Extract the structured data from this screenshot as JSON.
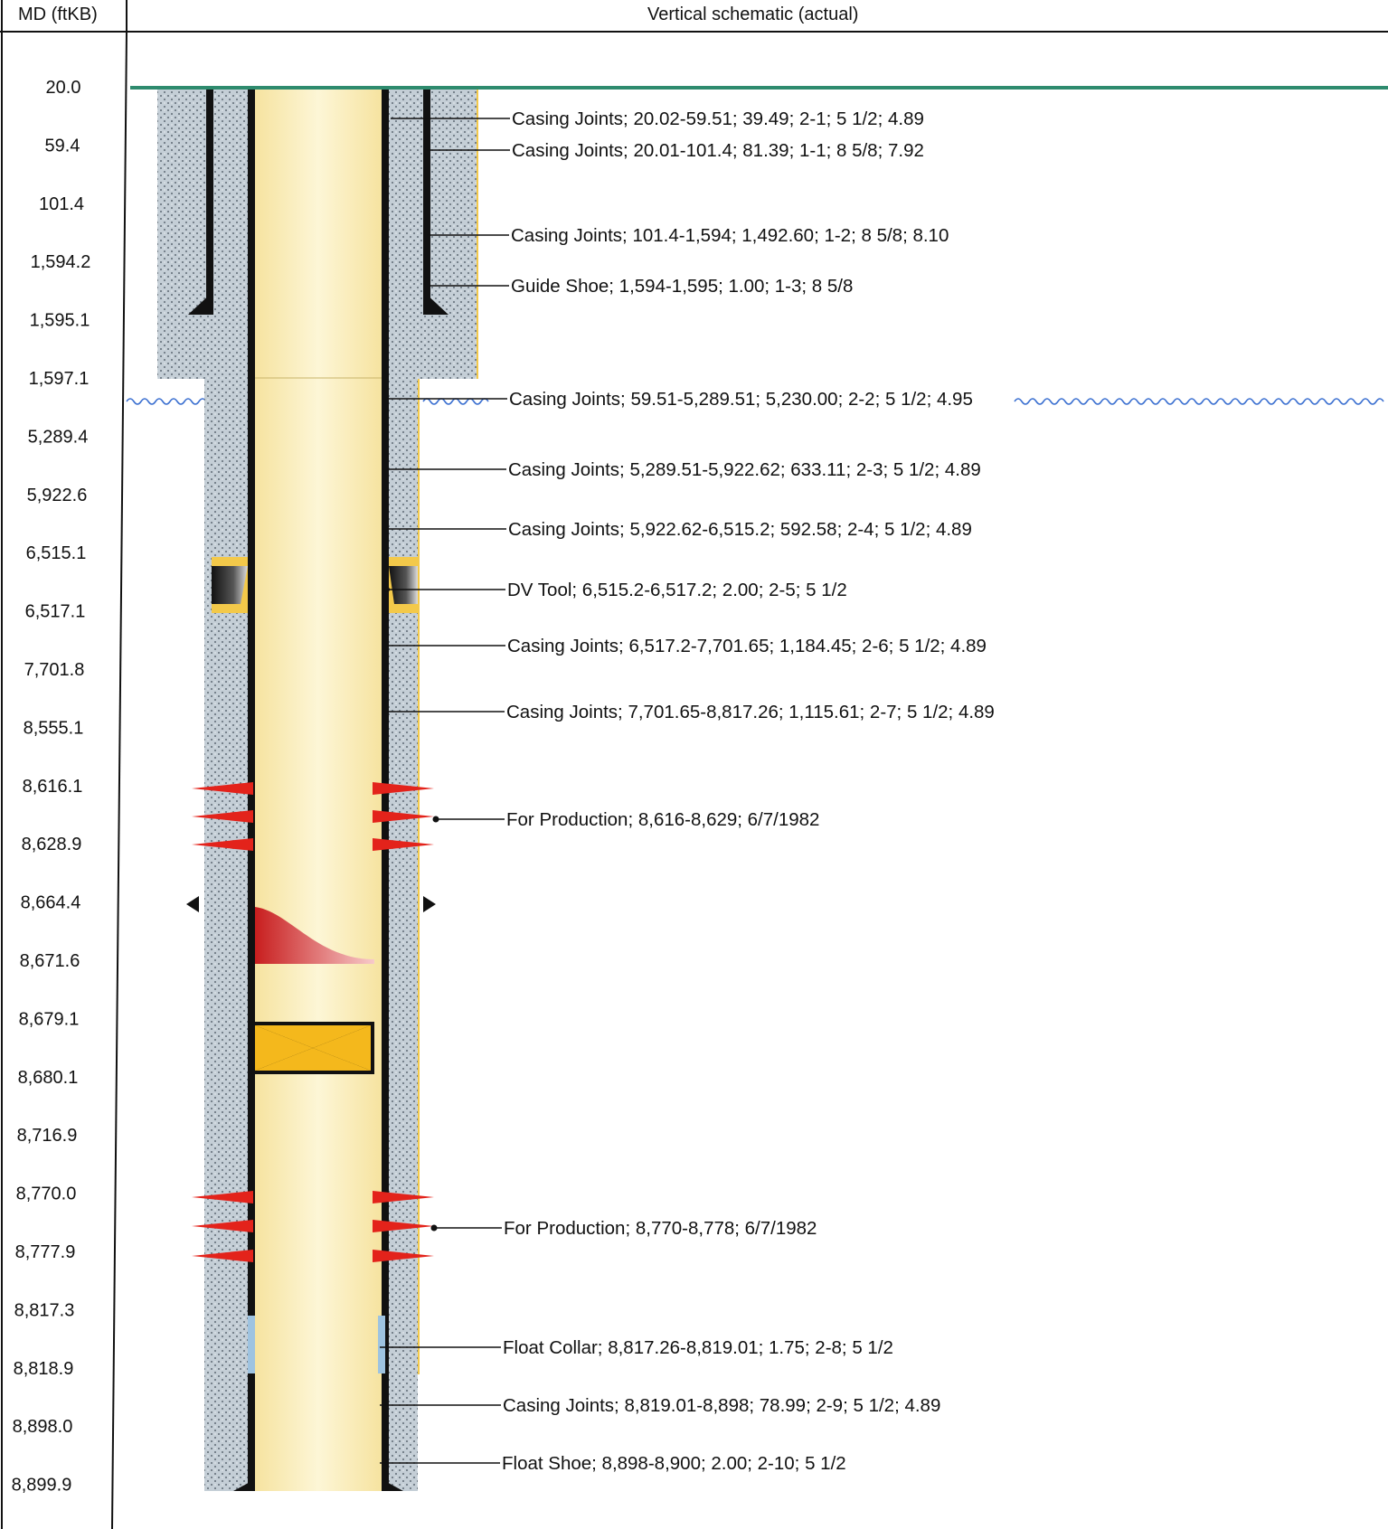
{
  "header": {
    "md_column": "MD (ftKB)",
    "schematic_column": "Vertical schematic (actual)"
  },
  "depths": [
    "20.0",
    "59.4",
    "101.4",
    "1,594.2",
    "1,595.1",
    "1,597.1",
    "5,289.4",
    "5,922.6",
    "6,515.1",
    "6,517.1",
    "7,701.8",
    "8,555.1",
    "8,616.1",
    "8,628.9",
    "8,664.4",
    "8,671.6",
    "8,679.1",
    "8,680.1",
    "8,716.9",
    "8,770.0",
    "8,777.9",
    "8,817.3",
    "8,818.9",
    "8,898.0",
    "8,899.9"
  ],
  "components": [
    {
      "label": "Casing Joints; 20.02-59.51; 39.49; 2-1; 5 1/2; 4.89"
    },
    {
      "label": "Casing Joints; 20.01-101.4; 81.39; 1-1; 8 5/8; 7.92"
    },
    {
      "label": "Casing Joints; 101.4-1,594; 1,492.60; 1-2; 8 5/8; 8.10"
    },
    {
      "label": "Guide Shoe; 1,594-1,595; 1.00; 1-3; 8 5/8"
    },
    {
      "label": "Casing Joints; 59.51-5,289.51; 5,230.00; 2-2; 5 1/2; 4.95"
    },
    {
      "label": "Casing Joints; 5,289.51-5,922.62; 633.11; 2-3; 5 1/2; 4.89"
    },
    {
      "label": "Casing Joints; 5,922.62-6,515.2; 592.58; 2-4; 5 1/2; 4.89"
    },
    {
      "label": "DV Tool; 6,515.2-6,517.2; 2.00; 2-5; 5 1/2"
    },
    {
      "label": "Casing Joints; 6,517.2-7,701.65; 1,184.45; 2-6; 5 1/2; 4.89"
    },
    {
      "label": "Casing Joints; 7,701.65-8,817.26; 1,115.61; 2-7; 5 1/2; 4.89"
    },
    {
      "label": "For Production; 8,616-8,629; 6/7/1982"
    },
    {
      "label": "For Production; 8,770-8,778; 6/7/1982"
    },
    {
      "label": "Float Collar; 8,817.26-8,819.01; 1.75; 2-8; 5 1/2"
    },
    {
      "label": "Casing Joints; 8,819.01-8,898; 78.99; 2-9; 5 1/2; 4.89"
    },
    {
      "label": "Float Shoe; 8,898-8,900; 2.00; 2-10; 5 1/2"
    }
  ],
  "colors": {
    "tubing_fill": "#fbefb8",
    "casing": "#111111",
    "cement": "#b8c4cc",
    "perforation": "#e3231b",
    "packer": "#f4b81c",
    "ground_line": "#2e8b6e",
    "water_line": "#3a6fd0"
  }
}
